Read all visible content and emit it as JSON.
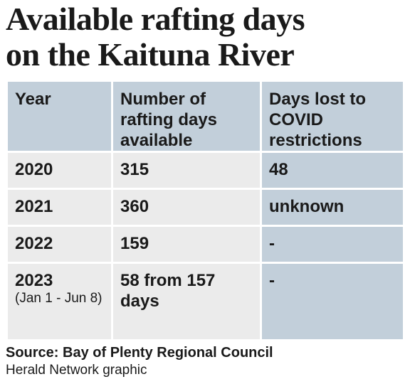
{
  "title": {
    "line1": "Available rafting days",
    "line2": "on the Kaituna River"
  },
  "chart_data": {
    "type": "table",
    "columns": [
      "Year",
      "Number of rafting days available",
      "Days lost to COVID restrictions"
    ],
    "rows": [
      {
        "year": "2020",
        "days": "315",
        "lost": "48"
      },
      {
        "year": "2021",
        "days": "360",
        "lost": "unknown"
      },
      {
        "year": "2022",
        "days": "159",
        "lost": "-"
      },
      {
        "year": "2023",
        "year_note": "(Jan 1 - Jun 8)",
        "days": "58 from 157 days",
        "lost": "-"
      }
    ]
  },
  "source": "Source: Bay of Plenty Regional Council",
  "credit": "Herald Network graphic",
  "colors": {
    "header_bg": "#c2cfda",
    "cell_bg": "#ebebeb",
    "text": "#1a1a1a"
  }
}
